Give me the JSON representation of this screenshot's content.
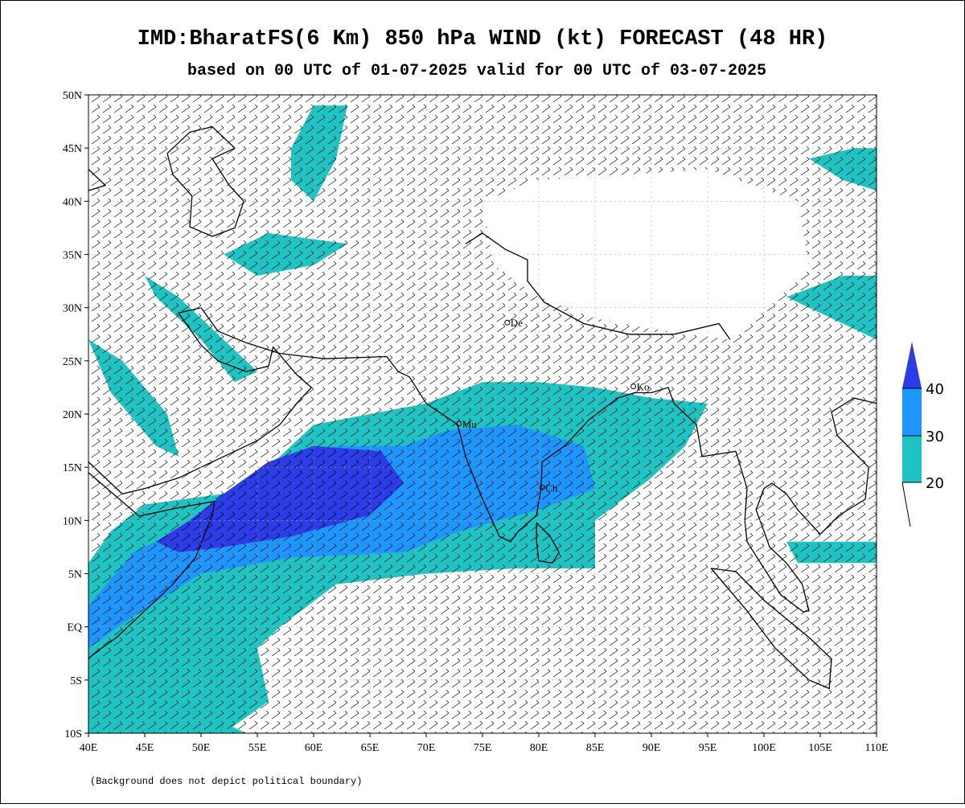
{
  "header": {
    "title": "IMD:BharatFS(6 Km) 850 hPa WIND (kt) FORECAST (48 HR)",
    "subtitle": "based on 00 UTC of 01-07-2025 valid for 00 UTC of 03-07-2025"
  },
  "map": {
    "lon_ticks": [
      {
        "value": 40,
        "label": "40E"
      },
      {
        "value": 45,
        "label": "45E"
      },
      {
        "value": 50,
        "label": "50E"
      },
      {
        "value": 55,
        "label": "55E"
      },
      {
        "value": 60,
        "label": "60E"
      },
      {
        "value": 65,
        "label": "65E"
      },
      {
        "value": 70,
        "label": "70E"
      },
      {
        "value": 75,
        "label": "75E"
      },
      {
        "value": 80,
        "label": "80E"
      },
      {
        "value": 85,
        "label": "85E"
      },
      {
        "value": 90,
        "label": "90E"
      },
      {
        "value": 95,
        "label": "95E"
      },
      {
        "value": 100,
        "label": "100E"
      },
      {
        "value": 105,
        "label": "105E"
      },
      {
        "value": 110,
        "label": "110E"
      }
    ],
    "lat_ticks": [
      {
        "value": 50,
        "label": "50N"
      },
      {
        "value": 45,
        "label": "45N"
      },
      {
        "value": 40,
        "label": "40N"
      },
      {
        "value": 35,
        "label": "35N"
      },
      {
        "value": 30,
        "label": "30N"
      },
      {
        "value": 25,
        "label": "25N"
      },
      {
        "value": 20,
        "label": "20N"
      },
      {
        "value": 15,
        "label": "15N"
      },
      {
        "value": 10,
        "label": "10N"
      },
      {
        "value": 5,
        "label": "5N"
      },
      {
        "value": 0,
        "label": "EQ"
      },
      {
        "value": -5,
        "label": "5S"
      },
      {
        "value": -10,
        "label": "10S"
      }
    ],
    "cities": [
      "De",
      "Mu",
      "Ko",
      "Ch"
    ]
  },
  "legend": {
    "levels": [
      20,
      30,
      40
    ],
    "colors": [
      "#1ec3c3",
      "#1e96ff",
      "#2c3ce6"
    ]
  },
  "footnote": "(Background does not depict political boundary)"
}
